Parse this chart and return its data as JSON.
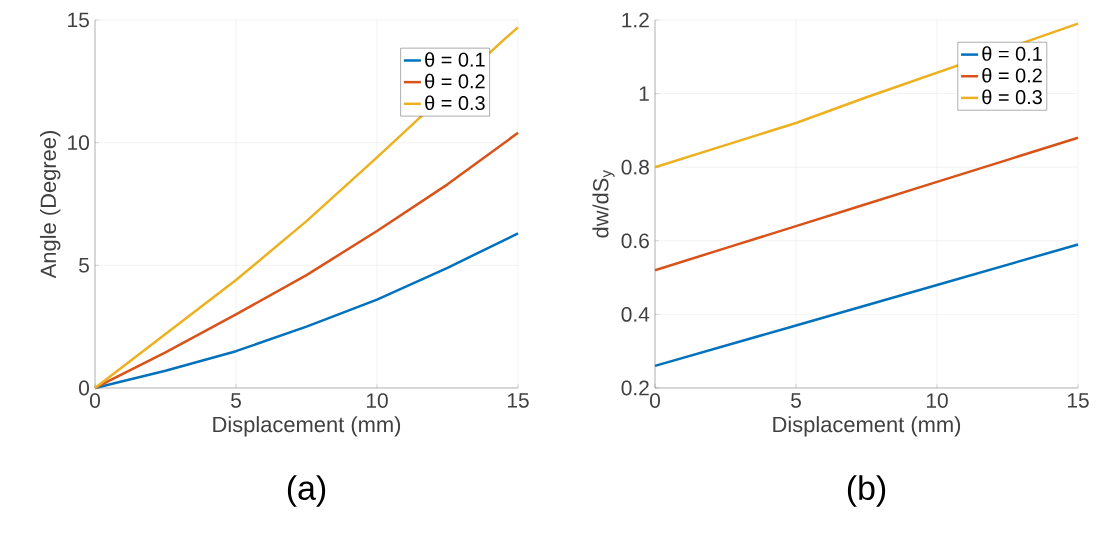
{
  "chart_data": [
    {
      "type": "line",
      "xlabel": "Displacement (mm)",
      "ylabel": "Angle (Degree)",
      "annotations": [
        "(a)"
      ],
      "xlim": [
        0,
        15
      ],
      "ylim": [
        0,
        15
      ],
      "xticks": [
        0,
        5,
        10,
        15
      ],
      "yticks": [
        0,
        5,
        10,
        15
      ],
      "grid": true,
      "legend": "top right",
      "line_style": "solid",
      "series": [
        {
          "name": "θ = 0.1",
          "color": "#0072bd",
          "x": [
            0,
            2.5,
            5,
            7.5,
            10,
            12.5,
            15
          ],
          "values": [
            0,
            0.7,
            1.5,
            2.5,
            3.6,
            4.9,
            6.3
          ]
        },
        {
          "name": "θ = 0.2",
          "color": "#d95319",
          "x": [
            0,
            2.5,
            5,
            7.5,
            10,
            12.5,
            15
          ],
          "values": [
            0,
            1.45,
            3.0,
            4.6,
            6.4,
            8.3,
            10.4
          ]
        },
        {
          "name": "θ = 0.3",
          "color": "#edb120",
          "x": [
            0,
            2.5,
            5,
            7.5,
            10,
            14.5,
            15
          ],
          "values": [
            0,
            2.2,
            4.4,
            6.8,
            9.4,
            14.2,
            14.7
          ]
        }
      ]
    },
    {
      "type": "line",
      "xlabel": "Displacement (mm)",
      "ylabel": "dw/dS$_{y}$",
      "annotations": [
        "(b)"
      ],
      "xlim": [
        0,
        15
      ],
      "ylim": [
        0.2,
        1.2
      ],
      "xticks": [
        0,
        5,
        10,
        15
      ],
      "yticks": [
        0.2,
        0.4,
        0.6,
        0.8,
        1,
        1.2
      ],
      "grid": true,
      "legend": "top right",
      "line_style": "solid",
      "series": [
        {
          "name": "θ = 0.1",
          "color": "#0072bd",
          "x": [
            0,
            5,
            10,
            15
          ],
          "values": [
            0.26,
            0.37,
            0.48,
            0.59
          ]
        },
        {
          "name": "θ = 0.2",
          "color": "#d95319",
          "x": [
            0,
            2.5,
            5,
            7.5,
            10,
            12.5,
            15
          ],
          "values": [
            0.52,
            0.58,
            0.64,
            0.7,
            0.76,
            0.82,
            0.88
          ]
        },
        {
          "name": "θ = 0.3",
          "color": "#edb120",
          "x": [
            0,
            2.5,
            5,
            7.5,
            13.5,
            15
          ],
          "values": [
            0.8,
            0.86,
            0.92,
            0.99,
            1.15,
            1.19
          ]
        }
      ]
    }
  ]
}
